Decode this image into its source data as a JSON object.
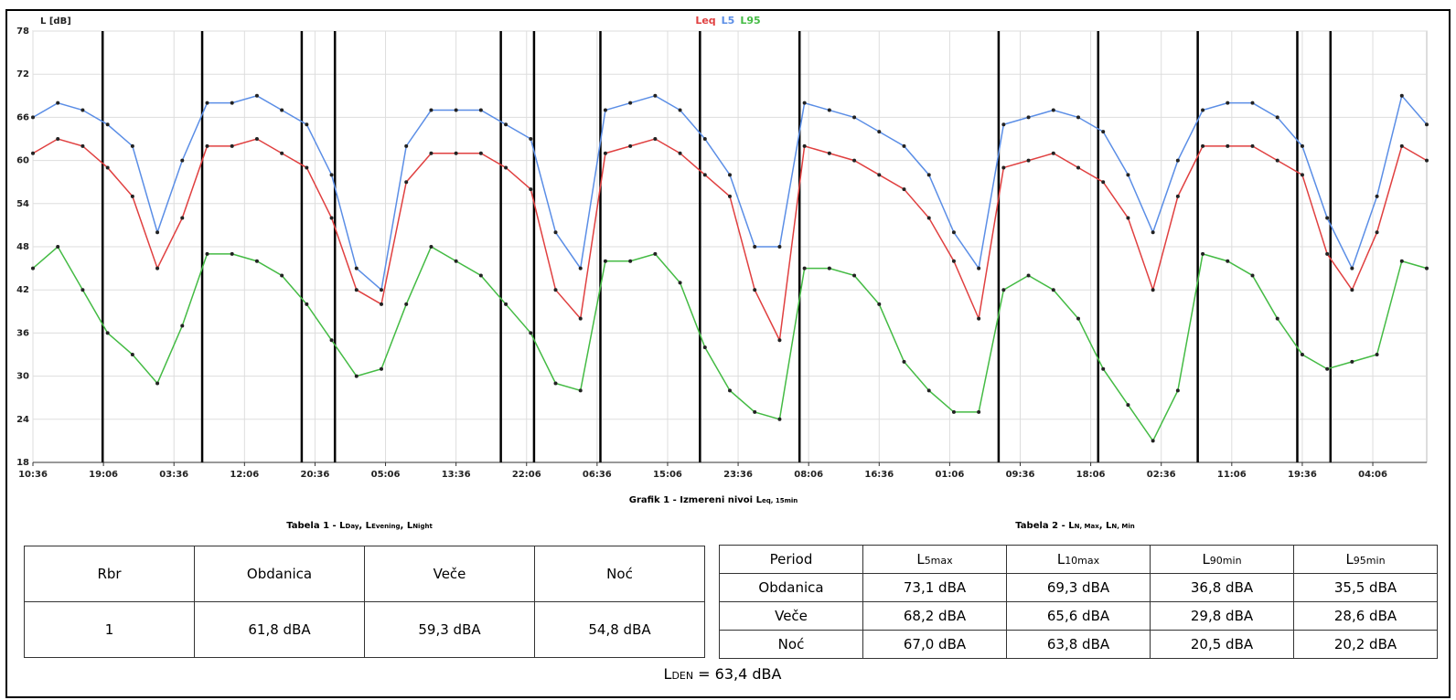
{
  "chart_data": {
    "type": "line",
    "y_label": "L [dB]",
    "x": [
      0,
      3,
      6,
      9,
      12,
      15,
      18,
      21,
      24,
      27,
      30,
      33,
      36,
      39,
      42,
      45,
      48,
      51,
      54,
      57,
      60,
      63,
      66,
      69,
      72,
      75,
      78,
      81,
      84,
      87,
      90,
      93,
      96,
      99,
      102,
      105,
      108,
      111,
      114,
      117,
      120,
      123,
      126,
      129,
      132,
      135,
      138,
      141,
      144,
      147,
      150,
      153,
      156,
      159,
      162,
      165,
      168
    ],
    "series": [
      {
        "name": "Leq",
        "color": "#e04040",
        "values": [
          61,
          63,
          62,
          59,
          55,
          45,
          52,
          62,
          62,
          63,
          61,
          59,
          52,
          42,
          40,
          57,
          61,
          61,
          61,
          59,
          56,
          42,
          38,
          61,
          62,
          63,
          61,
          58,
          55,
          42,
          35,
          62,
          61,
          60,
          58,
          56,
          52,
          46,
          38,
          59,
          60,
          61,
          59,
          57,
          52,
          42,
          55,
          62,
          62,
          62,
          60,
          58,
          47,
          42,
          50,
          62,
          60
        ]
      },
      {
        "name": "L5",
        "color": "#5b8ee6",
        "values": [
          66,
          68,
          67,
          65,
          62,
          50,
          60,
          68,
          68,
          69,
          67,
          65,
          58,
          45,
          42,
          62,
          67,
          67,
          67,
          65,
          63,
          50,
          45,
          67,
          68,
          69,
          67,
          63,
          58,
          48,
          48,
          68,
          67,
          66,
          64,
          62,
          58,
          50,
          45,
          65,
          66,
          67,
          66,
          64,
          58,
          50,
          60,
          67,
          68,
          68,
          66,
          62,
          52,
          45,
          55,
          69,
          65
        ]
      },
      {
        "name": "L95",
        "color": "#44bb44",
        "values": [
          45,
          48,
          42,
          36,
          33,
          29,
          37,
          47,
          47,
          46,
          44,
          40,
          35,
          30,
          31,
          40,
          48,
          46,
          44,
          40,
          36,
          29,
          28,
          46,
          46,
          47,
          43,
          34,
          28,
          25,
          24,
          45,
          45,
          44,
          40,
          32,
          28,
          25,
          25,
          42,
          44,
          42,
          38,
          31,
          26,
          21,
          28,
          47,
          46,
          44,
          38,
          33,
          31,
          32,
          33,
          46,
          45
        ]
      }
    ],
    "xlim": [
      0,
      168
    ],
    "xticks": [
      {
        "value": 0,
        "label": "10:36"
      },
      {
        "value": 8.5,
        "label": "19:06"
      },
      {
        "value": 17,
        "label": "03:36"
      },
      {
        "value": 25.5,
        "label": "12:06"
      },
      {
        "value": 34,
        "label": "20:36"
      },
      {
        "value": 42.5,
        "label": "05:06"
      },
      {
        "value": 51,
        "label": "13:36"
      },
      {
        "value": 59.5,
        "label": "22:06"
      },
      {
        "value": 68,
        "label": "06:36"
      },
      {
        "value": 76.5,
        "label": "15:06"
      },
      {
        "value": 85,
        "label": "23:36"
      },
      {
        "value": 93.5,
        "label": "08:06"
      },
      {
        "value": 102,
        "label": "16:36"
      },
      {
        "value": 110.5,
        "label": "01:06"
      },
      {
        "value": 119,
        "label": "09:36"
      },
      {
        "value": 127.5,
        "label": "18:06"
      },
      {
        "value": 136,
        "label": "02:36"
      },
      {
        "value": 144.5,
        "label": "11:06"
      },
      {
        "value": 153,
        "label": "19:36"
      },
      {
        "value": 161.5,
        "label": "04:06"
      }
    ],
    "ylim": [
      18,
      78
    ],
    "yticks": [
      18,
      24,
      30,
      36,
      42,
      48,
      54,
      60,
      66,
      72,
      78
    ],
    "grid": true,
    "period_lines": [
      8.4,
      20.4,
      32.4,
      36.4,
      56.4,
      60.4,
      68.4,
      80.4,
      92.4,
      116.4,
      128.4,
      140.4,
      152.4,
      156.4
    ],
    "caption": [
      "Grafik 1 - Izmereni nivoi L",
      "eq, 15min"
    ]
  },
  "table1": {
    "caption": [
      "Tabela 1 - L",
      "Day",
      ", L",
      "Evening",
      ", L",
      "Night"
    ],
    "header": [
      "Rbr",
      "Obdanica",
      "Veče",
      "Noć"
    ],
    "rows": [
      [
        "1",
        "61,8 dBA",
        "59,3 dBA",
        "54,8 dBA"
      ]
    ]
  },
  "table2": {
    "caption": [
      "Tabela 2 - L",
      "N, Max",
      ", L",
      "N, Min"
    ],
    "header": [
      "Period",
      [
        "L",
        "5max"
      ],
      [
        "L",
        "10max"
      ],
      [
        "L",
        "90min"
      ],
      [
        "L",
        "95min"
      ]
    ],
    "rows": [
      [
        "Obdanica",
        "73,1 dBA",
        "69,3 dBA",
        "36,8 dBA",
        "35,5 dBA"
      ],
      [
        "Veče",
        "68,2 dBA",
        "65,6 dBA",
        "29,8 dBA",
        "28,6 dBA"
      ],
      [
        "Noć",
        "67,0 dBA",
        "63,8 dBA",
        "20,5 dBA",
        "20,2 dBA"
      ]
    ]
  },
  "lden": [
    "L",
    "DEN",
    " = 63,4 dBA"
  ]
}
